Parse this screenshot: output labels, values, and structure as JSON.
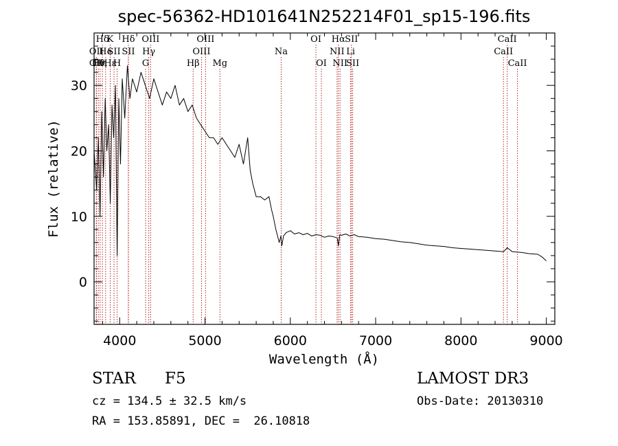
{
  "chart_data": {
    "type": "line",
    "title": "spec-56362-HD101641N252214F01_sp15-196.fits",
    "xlabel": "Wavelength (Å)",
    "ylabel": "Flux (relative)",
    "xlim": [
      3700,
      9100
    ],
    "ylim": [
      -6.5,
      38
    ],
    "xticks": [
      4000,
      5000,
      6000,
      7000,
      8000,
      9000
    ],
    "yticks": [
      0,
      10,
      20,
      30
    ],
    "xtick_labels": [
      "4000",
      "5000",
      "6000",
      "7000",
      "8000",
      "9000"
    ],
    "ytick_labels": [
      "0",
      "10",
      "20",
      "30"
    ],
    "series": [
      {
        "name": "spectrum",
        "x": [
          3700,
          3730,
          3750,
          3770,
          3790,
          3810,
          3830,
          3850,
          3870,
          3890,
          3910,
          3930,
          3950,
          3970,
          3990,
          4010,
          4030,
          4060,
          4090,
          4120,
          4150,
          4200,
          4250,
          4300,
          4350,
          4400,
          4450,
          4500,
          4550,
          4600,
          4650,
          4700,
          4750,
          4800,
          4850,
          4900,
          4950,
          5000,
          5050,
          5100,
          5150,
          5200,
          5250,
          5300,
          5350,
          5400,
          5450,
          5500,
          5530,
          5560,
          5600,
          5650,
          5700,
          5750,
          5780,
          5800,
          5830,
          5850,
          5870,
          5890,
          5900,
          5920,
          5950,
          6000,
          6050,
          6100,
          6150,
          6200,
          6250,
          6300,
          6350,
          6400,
          6450,
          6500,
          6550,
          6563,
          6580,
          6600,
          6650,
          6700,
          6750,
          6800,
          6900,
          7000,
          7100,
          7200,
          7300,
          7400,
          7500,
          7600,
          7700,
          7800,
          7900,
          8000,
          8100,
          8200,
          8300,
          8400,
          8500,
          8542,
          8600,
          8700,
          8800,
          8900,
          8950,
          9000
        ],
        "y": [
          20,
          14,
          22,
          10,
          26,
          16,
          28,
          20,
          24,
          12,
          27,
          22,
          30,
          4,
          28,
          18,
          31,
          25,
          33,
          28,
          31,
          29,
          32,
          30,
          28,
          31,
          29,
          27,
          29,
          28,
          30,
          27,
          28,
          26,
          27,
          25,
          24,
          23,
          22,
          22,
          21,
          22,
          21,
          20,
          19,
          21,
          18,
          22,
          17,
          15,
          13,
          13,
          12.5,
          13,
          11,
          10,
          8,
          7,
          6,
          7,
          5.5,
          7,
          7.5,
          7.8,
          7.3,
          7.5,
          7.2,
          7.4,
          7,
          7.2,
          7.1,
          6.8,
          7,
          6.9,
          6.7,
          5.5,
          7.2,
          7.1,
          7.3,
          7,
          7.2,
          6.9,
          6.8,
          6.6,
          6.5,
          6.3,
          6.1,
          6,
          5.8,
          5.6,
          5.5,
          5.4,
          5.2,
          5.1,
          5,
          4.9,
          4.8,
          4.7,
          4.6,
          5.2,
          4.6,
          4.5,
          4.3,
          4.2,
          3.8,
          3.2
        ]
      }
    ],
    "line_markers": [
      {
        "w": 3727,
        "label": "OII",
        "row": 1
      },
      {
        "w": 3727,
        "label": "OII",
        "row": 2
      },
      {
        "w": 3750,
        "label": "Hθ",
        "row": 2
      },
      {
        "w": 3771,
        "label": "Hη",
        "row": 2
      },
      {
        "w": 3798,
        "label": "Hδ",
        "row": 0
      },
      {
        "w": 3835,
        "label": "He",
        "row": 1
      },
      {
        "w": 3889,
        "label": "K",
        "row": 0
      },
      {
        "w": 3889,
        "label": "Hε",
        "row": 2
      },
      {
        "w": 3934,
        "label": "SII",
        "row": 1
      },
      {
        "w": 3970,
        "label": "H",
        "row": 2
      },
      {
        "w": 4102,
        "label": "Hδ",
        "row": 0
      },
      {
        "w": 4102,
        "label": "SII",
        "row": 1
      },
      {
        "w": 4304,
        "label": "G",
        "row": 2
      },
      {
        "w": 4341,
        "label": "Hγ",
        "row": 1
      },
      {
        "w": 4363,
        "label": "OIII",
        "row": 0
      },
      {
        "w": 4861,
        "label": "Hβ",
        "row": 2
      },
      {
        "w": 4959,
        "label": "OIII",
        "row": 1
      },
      {
        "w": 5007,
        "label": "OIII",
        "row": 0
      },
      {
        "w": 5175,
        "label": "Mg",
        "row": 2
      },
      {
        "w": 5893,
        "label": "Na",
        "row": 1
      },
      {
        "w": 6300,
        "label": "OI",
        "row": 0
      },
      {
        "w": 6364,
        "label": "OI",
        "row": 2
      },
      {
        "w": 6548,
        "label": "NII",
        "row": 1
      },
      {
        "w": 6563,
        "label": "Hα",
        "row": 0
      },
      {
        "w": 6583,
        "label": "NII",
        "row": 2
      },
      {
        "w": 6707,
        "label": "Li",
        "row": 1
      },
      {
        "w": 6716,
        "label": "SII",
        "row": 0
      },
      {
        "w": 6731,
        "label": "SII",
        "row": 2
      },
      {
        "w": 8498,
        "label": "CaII",
        "row": 1
      },
      {
        "w": 8542,
        "label": "CaII",
        "row": 0
      },
      {
        "w": 8662,
        "label": "CaII",
        "row": 2
      }
    ]
  },
  "footer": {
    "object_type": "STAR",
    "subclass": "F5",
    "survey": "LAMOST DR3",
    "cz": "cz = 134.5 ± 32.5 km/s",
    "obs_date": "Obs-Date: 20130310",
    "coords": "RA = 153.85891, DEC =  26.10818"
  },
  "colors": {
    "marker_line": "#b22222",
    "spectrum": "#000000"
  }
}
